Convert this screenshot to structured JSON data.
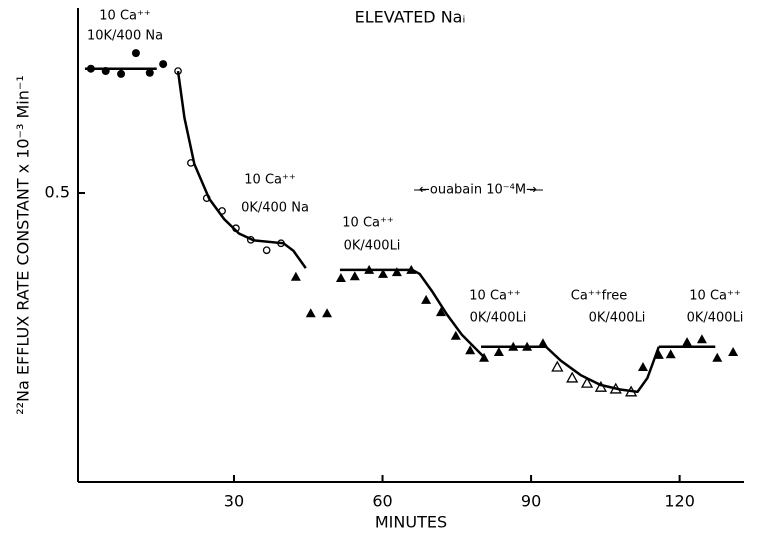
{
  "chart_data": {
    "type": "scatter",
    "title": "ELEVATED Naᵢ",
    "x_label": "MINUTES",
    "y_label": "²²Na EFFLUX RATE CONSTANT x 10⁻³ Min⁻¹",
    "xlim": [
      -1.5,
      133
    ],
    "xticks": [
      30,
      60,
      90,
      120
    ],
    "ylim": [
      0,
      0.83
    ],
    "yticks": [
      0.5
    ],
    "annotations": [
      "10 Ca⁺⁺",
      "10K/400 Na",
      "10 Ca⁺⁺",
      "0K/400 Na",
      "10 Ca⁺⁺",
      "0K/400Li",
      "←ouabain 10⁻⁴M→",
      "10 Ca⁺⁺",
      "0K/400Li",
      "Ca⁺⁺free",
      "0K/400Li",
      "10 Ca⁺⁺",
      "0K/400Li"
    ],
    "series": [
      {
        "marker": "filled-circle",
        "color": "#000000",
        "x": [
          1.1,
          4.1,
          7.2,
          10.2,
          13.0,
          15.7
        ],
        "values": [
          0.715,
          0.711,
          0.706,
          0.742,
          0.708,
          0.723
        ]
      },
      {
        "marker": "open-circle",
        "color": "#000000",
        "x": [
          18.7,
          21.3,
          24.5,
          27.6,
          30.4,
          33.4,
          36.6,
          39.5
        ],
        "values": [
          0.711,
          0.552,
          0.491,
          0.469,
          0.439,
          0.419,
          0.401,
          0.413
        ]
      },
      {
        "marker": "filled-triangle",
        "color": "#000000",
        "x": [
          42.5,
          45.5,
          48.8,
          51.6,
          54.4,
          57.3,
          60.1,
          62.9,
          65.8,
          68.8,
          71.8,
          74.8,
          77.7,
          80.5,
          83.5,
          86.4,
          89.2,
          92.4,
          112.6,
          115.8,
          118.2,
          121.5,
          124.5,
          127.6,
          130.8
        ],
        "values": [
          0.355,
          0.292,
          0.292,
          0.353,
          0.356,
          0.367,
          0.36,
          0.363,
          0.367,
          0.315,
          0.294,
          0.253,
          0.228,
          0.215,
          0.225,
          0.234,
          0.234,
          0.24,
          0.199,
          0.22,
          0.221,
          0.242,
          0.247,
          0.215,
          0.225
        ]
      },
      {
        "marker": "open-triangle",
        "color": "#000000",
        "x": [
          95.3,
          98.3,
          101.3,
          104.1,
          107.1,
          110.2
        ],
        "values": [
          0.199,
          0.18,
          0.171,
          0.164,
          0.161,
          0.156
        ]
      },
      {
        "marker": "line",
        "color": "#000000",
        "x": [
          -0.1,
          14.4
        ],
        "values": [
          0.715,
          0.715
        ]
      },
      {
        "marker": "line",
        "color": "#000000",
        "x": [
          18.7,
          20,
          22,
          25,
          28,
          31,
          34,
          40,
          42,
          44.5
        ],
        "values": [
          0.711,
          0.63,
          0.55,
          0.49,
          0.455,
          0.43,
          0.418,
          0.413,
          0.4,
          0.37
        ]
      },
      {
        "marker": "line",
        "color": "#000000",
        "x": [
          51.4,
          66,
          67.5,
          70,
          73,
          76,
          80.5
        ],
        "values": [
          0.367,
          0.367,
          0.36,
          0.33,
          0.29,
          0.255,
          0.216
        ]
      },
      {
        "marker": "line",
        "color": "#000000",
        "x": [
          79.9,
          93
        ],
        "values": [
          0.234,
          0.234
        ]
      },
      {
        "marker": "line",
        "color": "#000000",
        "x": [
          93,
          96,
          100,
          104,
          108,
          111.5,
          113.5,
          115.8
        ],
        "values": [
          0.234,
          0.21,
          0.185,
          0.168,
          0.16,
          0.156,
          0.18,
          0.234
        ]
      },
      {
        "marker": "line",
        "color": "#000000",
        "x": [
          115.8,
          127.2
        ],
        "values": [
          0.234,
          0.234
        ]
      }
    ]
  }
}
